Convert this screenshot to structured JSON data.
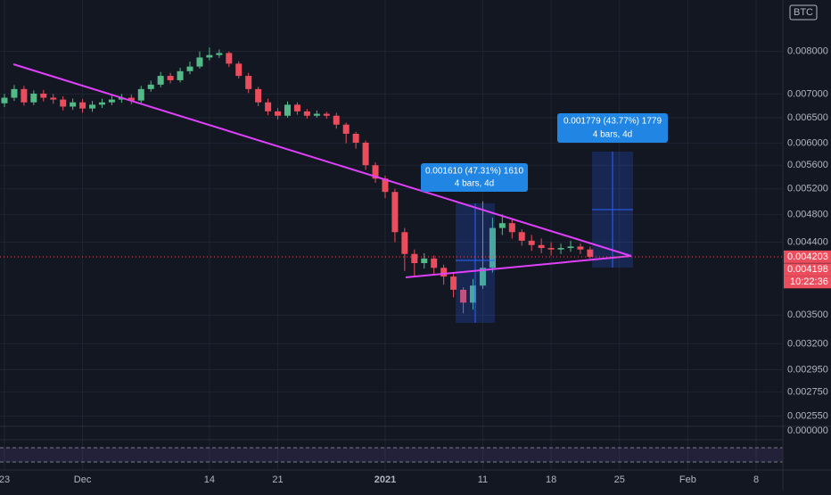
{
  "chart_data": {
    "type": "candlestick",
    "symbol_label": "BTC",
    "categories": [
      "23",
      null,
      null,
      null,
      null,
      null,
      null,
      null,
      "Dec",
      null,
      null,
      null,
      null,
      null,
      null,
      null,
      null,
      null,
      null,
      null,
      null,
      "14",
      null,
      null,
      null,
      null,
      null,
      null,
      "21",
      null,
      null,
      null,
      null,
      null,
      null,
      null,
      null,
      null,
      null,
      "2021",
      null,
      null,
      null,
      null,
      null,
      null,
      null,
      null,
      null,
      "11",
      null,
      null,
      null,
      null,
      null,
      null,
      "18",
      null,
      null,
      null,
      null,
      null,
      null,
      "25",
      null,
      null,
      null,
      null,
      null,
      null,
      "Feb",
      null,
      null,
      null,
      null,
      null,
      null,
      "8"
    ],
    "open": [
      0.0068,
      0.00692,
      0.00711,
      0.00682,
      0.00701,
      0.00692,
      0.00688,
      0.00673,
      0.00682,
      0.00669,
      0.00677,
      0.00682,
      0.00688,
      0.00692,
      0.00686,
      0.00711,
      0.00721,
      0.00741,
      0.00731,
      0.00752,
      0.00763,
      0.00785,
      0.00791,
      0.00796,
      0.0077,
      0.00741,
      0.00711,
      0.00682,
      0.00663,
      0.00654,
      0.00677,
      0.00663,
      0.00654,
      0.00658,
      0.00654,
      0.00636,
      0.00618,
      0.00601,
      0.0056,
      0.00537,
      0.00515,
      0.00454,
      0.00424,
      0.00412,
      0.00418,
      0.00406,
      0.00395,
      0.00379,
      0.00364,
      0.00384,
      0.00406,
      0.0046,
      0.00467,
      0.00454,
      0.00442,
      0.00436,
      0.00432,
      0.0043,
      0.00432,
      0.00434,
      0.0043,
      null,
      null,
      null,
      null,
      null,
      null,
      null,
      null,
      null,
      null,
      null,
      null,
      null,
      null,
      null,
      null,
      null
    ],
    "high": [
      0.007,
      0.0072,
      0.00718,
      0.00708,
      0.00709,
      0.007,
      0.00695,
      0.0069,
      0.00689,
      0.00685,
      0.0069,
      0.00696,
      0.007,
      0.00699,
      0.00718,
      0.0073,
      0.0075,
      0.00748,
      0.0076,
      0.00775,
      0.008,
      0.0081,
      0.00805,
      0.008,
      0.00776,
      0.00748,
      0.00716,
      0.0069,
      0.0067,
      0.00684,
      0.00682,
      0.00668,
      0.00665,
      0.00662,
      0.0066,
      0.0064,
      0.00622,
      0.00605,
      0.00565,
      0.00542,
      0.0052,
      0.0046,
      0.0043,
      0.00425,
      0.00422,
      0.0041,
      0.004,
      0.00382,
      0.00392,
      0.005,
      0.00475,
      0.0048,
      0.00472,
      0.00458,
      0.0045,
      0.00445,
      0.0044,
      0.00438,
      0.00442,
      0.00438,
      0.00434,
      null,
      null,
      null,
      null,
      null,
      null,
      null,
      null,
      null,
      null,
      null,
      null,
      null,
      null,
      null,
      null,
      null
    ],
    "low": [
      0.00672,
      0.00685,
      0.00675,
      0.00676,
      0.00684,
      0.00679,
      0.00665,
      0.00666,
      0.0066,
      0.00662,
      0.0067,
      0.00676,
      0.00681,
      0.00678,
      0.00681,
      0.00705,
      0.00715,
      0.00724,
      0.00726,
      0.00745,
      0.00758,
      0.00778,
      0.00784,
      0.00762,
      0.00735,
      0.00702,
      0.00674,
      0.00655,
      0.00646,
      0.0065,
      0.00656,
      0.00648,
      0.0065,
      0.00648,
      0.00628,
      0.006,
      0.0059,
      0.00552,
      0.0053,
      0.00505,
      0.0044,
      0.00402,
      0.00395,
      0.00405,
      0.00398,
      0.00385,
      0.0037,
      0.00352,
      0.00356,
      0.0038,
      0.004,
      0.0045,
      0.00445,
      0.00435,
      0.00428,
      0.00425,
      0.00422,
      0.00424,
      0.00427,
      0.00424,
      0.00418,
      null,
      null,
      null,
      null,
      null,
      null,
      null,
      null,
      null,
      null,
      null,
      null,
      null,
      null,
      null,
      null,
      null
    ],
    "close": [
      0.00692,
      0.00711,
      0.00682,
      0.00701,
      0.00692,
      0.00688,
      0.00673,
      0.00682,
      0.00669,
      0.00677,
      0.00682,
      0.00688,
      0.00692,
      0.00686,
      0.00711,
      0.00721,
      0.00741,
      0.00731,
      0.00752,
      0.00763,
      0.00785,
      0.00791,
      0.00796,
      0.0077,
      0.00741,
      0.00711,
      0.00682,
      0.00663,
      0.00654,
      0.00677,
      0.00663,
      0.00654,
      0.00658,
      0.00654,
      0.00636,
      0.00618,
      0.00601,
      0.0056,
      0.00537,
      0.00515,
      0.00454,
      0.00424,
      0.00412,
      0.00418,
      0.00406,
      0.00395,
      0.00379,
      0.00364,
      0.00384,
      0.00406,
      0.0046,
      0.00467,
      0.00454,
      0.00442,
      0.00436,
      0.00432,
      0.0043,
      0.00432,
      0.00434,
      0.0043,
      0.004203,
      null,
      null,
      null,
      null,
      null,
      null,
      null,
      null,
      null,
      null,
      null,
      null,
      null,
      null,
      null,
      null,
      null
    ],
    "up_color": "#53b987",
    "down_color": "#eb4d5c",
    "log_scale": true,
    "grid": true,
    "ylim": [
      0.00247,
      0.0094
    ],
    "yticks": [
      {
        "value": 0.008,
        "label": "0.008000"
      },
      {
        "value": 0.007,
        "label": "0.007000"
      },
      {
        "value": 0.0065,
        "label": "0.006500"
      },
      {
        "value": 0.006,
        "label": "0.006000"
      },
      {
        "value": 0.0056,
        "label": "0.005600"
      },
      {
        "value": 0.0052,
        "label": "0.005200"
      },
      {
        "value": 0.0048,
        "label": "0.004800"
      },
      {
        "value": 0.0044,
        "label": "0.004400"
      },
      {
        "value": 0.0035,
        "label": "0.003500"
      },
      {
        "value": 0.0032,
        "label": "0.003200"
      },
      {
        "value": 0.00295,
        "label": "0.002950"
      },
      {
        "value": 0.00275,
        "label": "0.002750"
      },
      {
        "value": 0.00255,
        "label": "0.002550"
      }
    ],
    "price_tags": [
      {
        "value": 0.004203,
        "label": "0.004203"
      },
      {
        "value": 0.004198,
        "label": "0.004198"
      }
    ],
    "countdown": "10:22:36",
    "indicator_axis_label": "0.000000",
    "annotations": [
      {
        "text": "0.001610 (47.31%) 1610",
        "subtext": "4 bars, 4d"
      },
      {
        "text": "0.001779 (43.77%) 1779",
        "subtext": "4 bars, 4d"
      }
    ]
  }
}
